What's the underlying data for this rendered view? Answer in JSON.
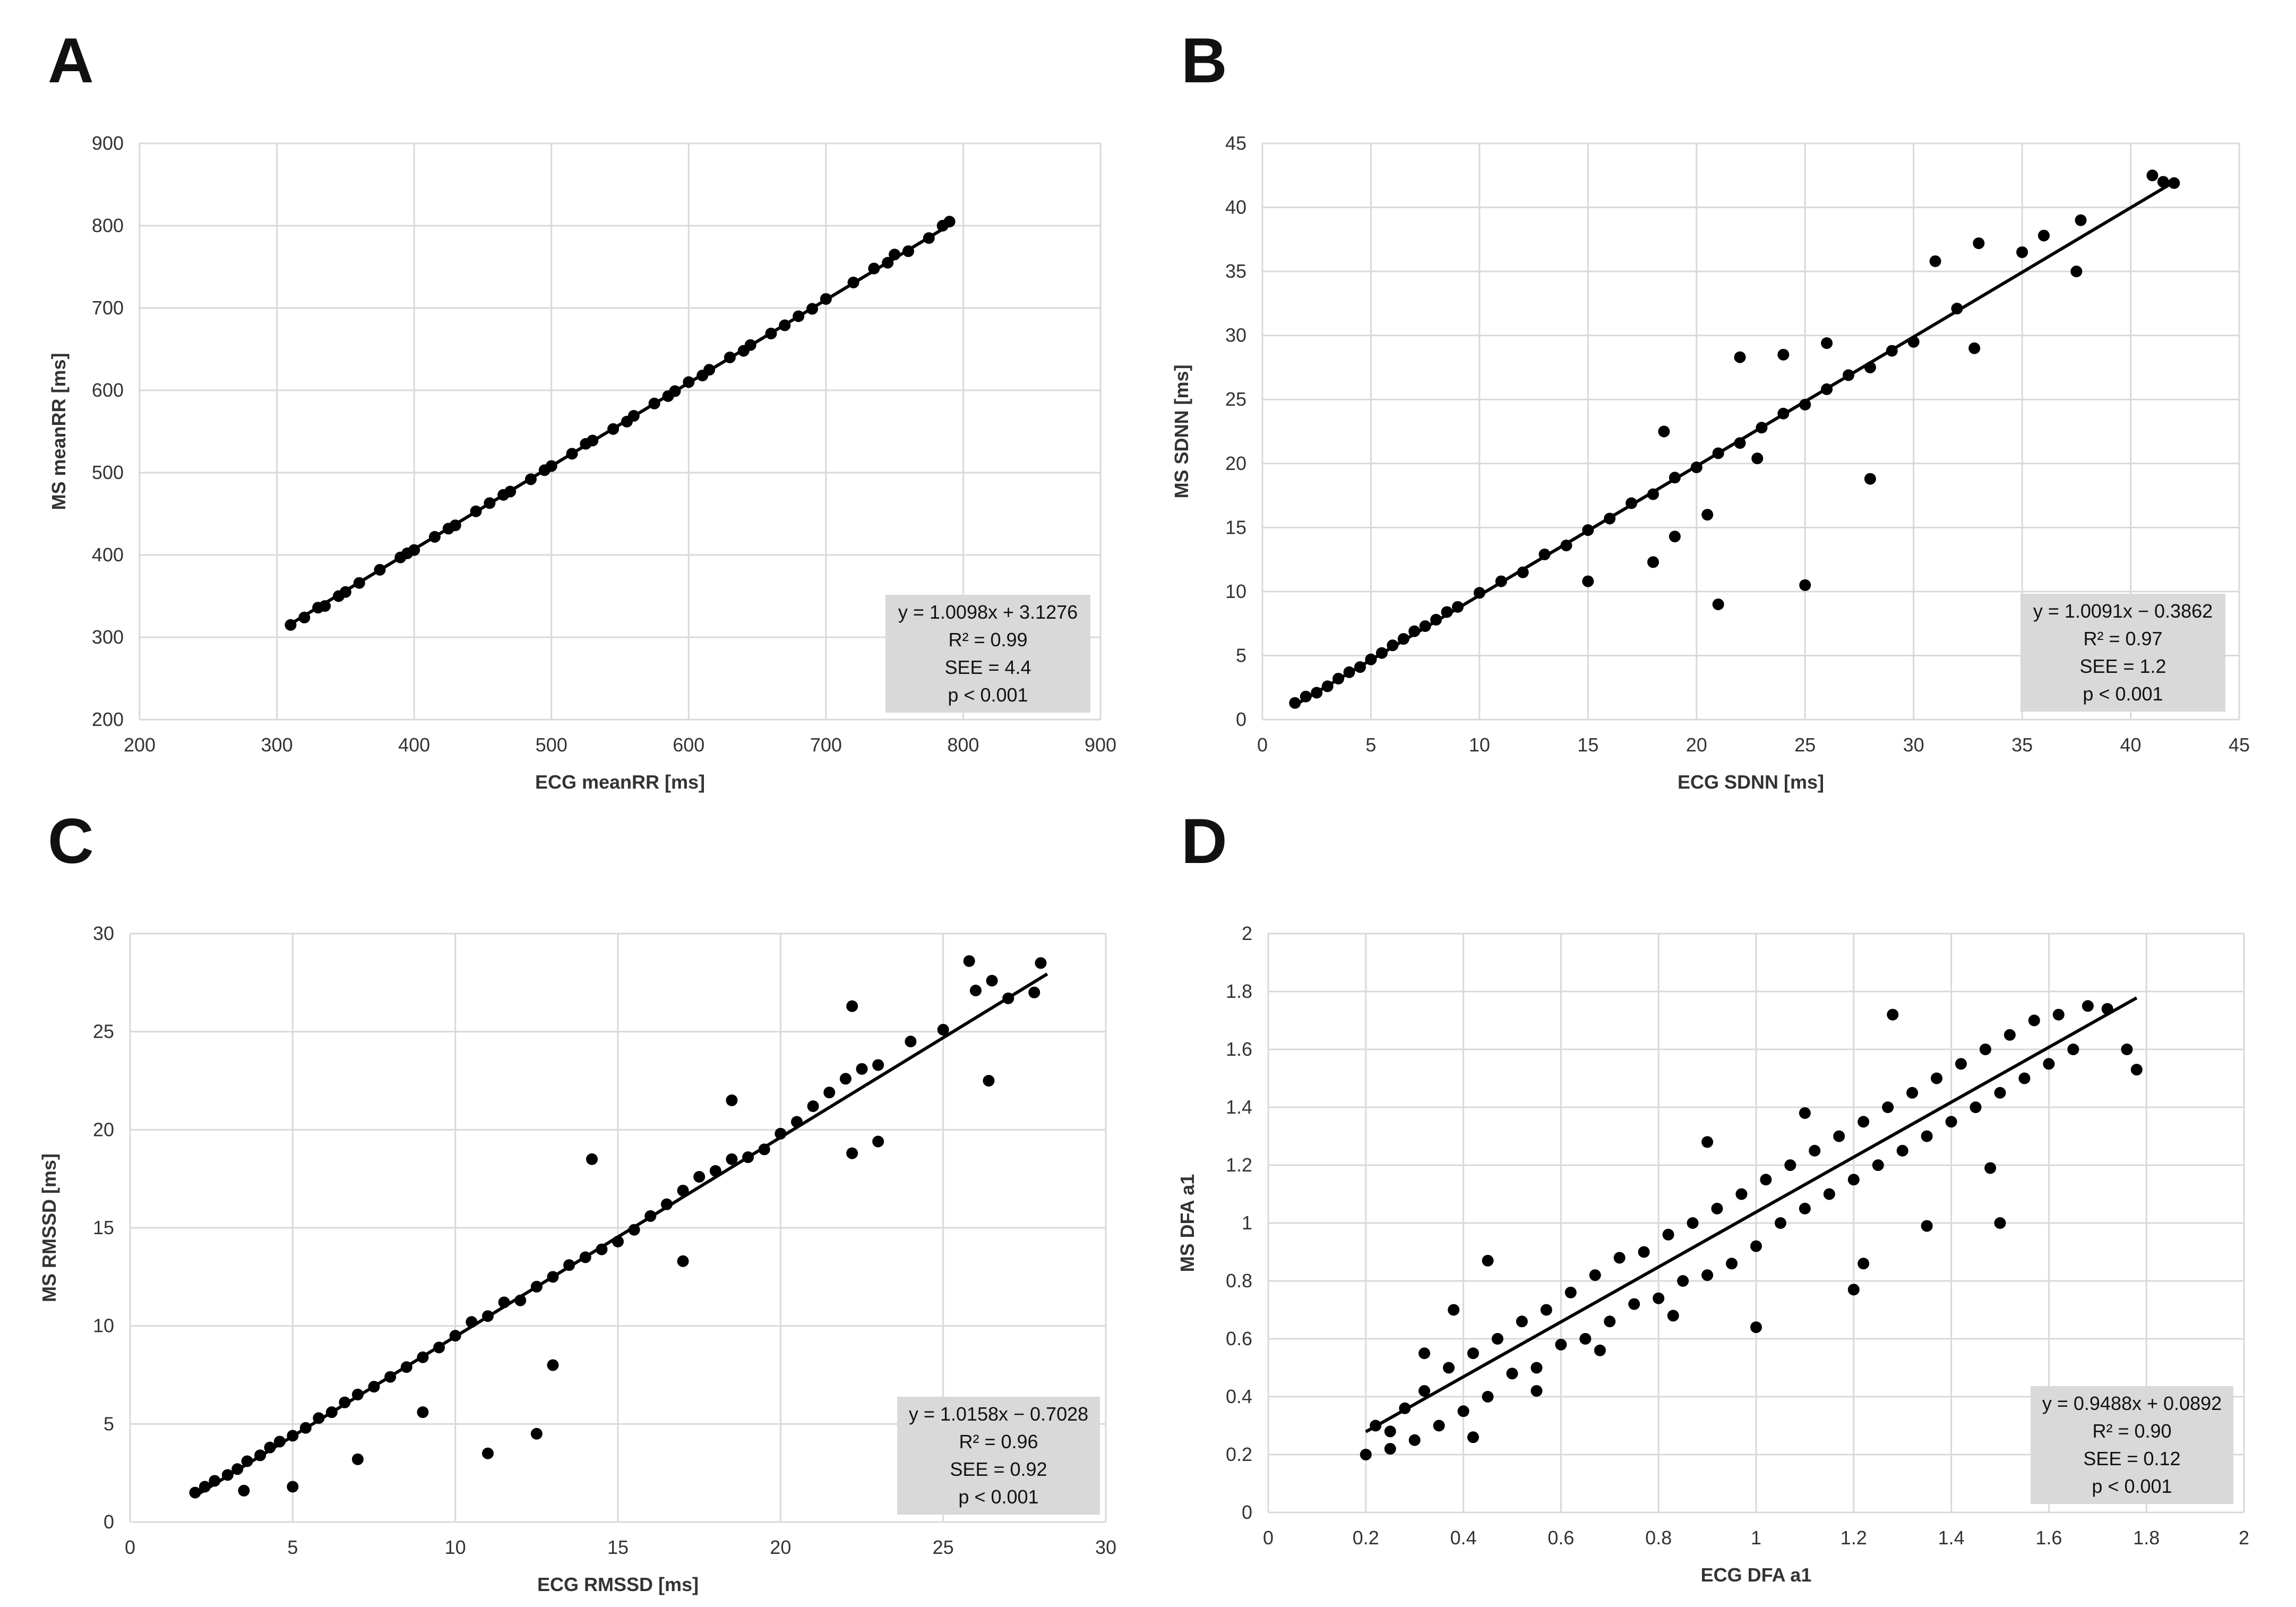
{
  "chart_data": [
    {
      "panel": "A",
      "type": "scatter",
      "xlabel": "ECG meanRR [ms]",
      "ylabel": "MS meanRR [ms]",
      "xlim": [
        200,
        900
      ],
      "ylim": [
        200,
        900
      ],
      "xticks": [
        200,
        300,
        400,
        500,
        600,
        700,
        800,
        900
      ],
      "yticks": [
        200,
        300,
        400,
        500,
        600,
        700,
        800,
        900
      ],
      "grid": true,
      "legend_position": "bottom-right",
      "regression": {
        "slope": 1.0098,
        "intercept": 3.1276,
        "x_range": [
          310,
          790
        ]
      },
      "stats": [
        "y = 1.0098x + 3.1276",
        "R² = 0.99",
        "SEE = 4.4",
        "p < 0.001"
      ],
      "points": [
        [
          310,
          315
        ],
        [
          320,
          324
        ],
        [
          330,
          336
        ],
        [
          345,
          350
        ],
        [
          360,
          366
        ],
        [
          375,
          382
        ],
        [
          390,
          397
        ],
        [
          400,
          406
        ],
        [
          415,
          422
        ],
        [
          430,
          436
        ],
        [
          445,
          453
        ],
        [
          455,
          463
        ],
        [
          470,
          477
        ],
        [
          485,
          492
        ],
        [
          500,
          508
        ],
        [
          515,
          523
        ],
        [
          530,
          539
        ],
        [
          545,
          553
        ],
        [
          560,
          569
        ],
        [
          575,
          584
        ],
        [
          590,
          599
        ],
        [
          600,
          610
        ],
        [
          615,
          625
        ],
        [
          630,
          640
        ],
        [
          645,
          655
        ],
        [
          660,
          669
        ],
        [
          680,
          690
        ],
        [
          700,
          711
        ],
        [
          720,
          731
        ],
        [
          745,
          755
        ],
        [
          760,
          769
        ],
        [
          775,
          785
        ],
        [
          785,
          800
        ],
        [
          790,
          805
        ],
        [
          335,
          338
        ],
        [
          350,
          355
        ],
        [
          395,
          402
        ],
        [
          425,
          432
        ],
        [
          465,
          473
        ],
        [
          495,
          503
        ],
        [
          525,
          535
        ],
        [
          555,
          562
        ],
        [
          585,
          593
        ],
        [
          610,
          618
        ],
        [
          640,
          648
        ],
        [
          670,
          679
        ],
        [
          690,
          699
        ],
        [
          735,
          748
        ],
        [
          750,
          765
        ]
      ]
    },
    {
      "panel": "B",
      "type": "scatter",
      "xlabel": "ECG SDNN [ms]",
      "ylabel": "MS SDNN [ms]",
      "xlim": [
        0,
        45
      ],
      "ylim": [
        0,
        45
      ],
      "xticks": [
        0,
        5,
        10,
        15,
        20,
        25,
        30,
        35,
        40,
        45
      ],
      "yticks": [
        0,
        5,
        10,
        15,
        20,
        25,
        30,
        35,
        40,
        45
      ],
      "grid": true,
      "legend_position": "bottom-right",
      "regression": {
        "slope": 1.0091,
        "intercept": -0.3862,
        "x_range": [
          1.5,
          42
        ]
      },
      "stats": [
        "y = 1.0091x − 0.3862",
        "R² = 0.97",
        "SEE = 1.2",
        "p < 0.001"
      ],
      "points": [
        [
          1.5,
          1.3
        ],
        [
          2,
          1.8
        ],
        [
          2.5,
          2.1
        ],
        [
          3,
          2.6
        ],
        [
          3.5,
          3.2
        ],
        [
          4,
          3.7
        ],
        [
          4.5,
          4.1
        ],
        [
          5,
          4.7
        ],
        [
          5.5,
          5.2
        ],
        [
          6,
          5.8
        ],
        [
          6.5,
          6.3
        ],
        [
          7,
          6.9
        ],
        [
          7.5,
          7.3
        ],
        [
          8,
          7.8
        ],
        [
          8.5,
          8.4
        ],
        [
          9,
          8.8
        ],
        [
          10,
          9.9
        ],
        [
          11,
          10.8
        ],
        [
          12,
          11.5
        ],
        [
          13,
          12.9
        ],
        [
          14,
          13.6
        ],
        [
          15,
          14.8
        ],
        [
          16,
          15.7
        ],
        [
          17,
          16.9
        ],
        [
          18,
          17.6
        ],
        [
          19,
          18.9
        ],
        [
          20,
          19.7
        ],
        [
          21,
          20.8
        ],
        [
          22,
          21.6
        ],
        [
          23,
          22.8
        ],
        [
          24,
          23.9
        ],
        [
          25,
          24.6
        ],
        [
          26,
          25.8
        ],
        [
          27,
          26.9
        ],
        [
          28,
          27.5
        ],
        [
          29,
          28.8
        ],
        [
          30,
          29.5
        ],
        [
          32,
          32.1
        ],
        [
          33,
          37.2
        ],
        [
          35,
          36.5
        ],
        [
          36,
          37.8
        ],
        [
          37.7,
          39.0
        ],
        [
          37.5,
          35.0
        ],
        [
          41,
          42.5
        ],
        [
          41.5,
          42.0
        ],
        [
          42,
          41.9
        ],
        [
          21,
          9.0
        ],
        [
          25,
          10.5
        ],
        [
          28,
          18.8
        ],
        [
          18.5,
          22.5
        ],
        [
          20.5,
          16.0
        ],
        [
          18,
          12.3
        ],
        [
          15,
          10.8
        ],
        [
          22,
          28.3
        ],
        [
          24,
          28.5
        ],
        [
          26,
          29.4
        ],
        [
          31,
          35.8
        ],
        [
          32.8,
          29.0
        ],
        [
          19,
          14.3
        ],
        [
          22.8,
          20.4
        ]
      ]
    },
    {
      "panel": "C",
      "type": "scatter",
      "xlabel": "ECG RMSSD [ms]",
      "ylabel": "MS RMSSD [ms]",
      "xlim": [
        0,
        30
      ],
      "ylim": [
        0,
        30
      ],
      "xticks": [
        0,
        5,
        10,
        15,
        20,
        25,
        30
      ],
      "yticks": [
        0,
        5,
        10,
        15,
        20,
        25,
        30
      ],
      "grid": true,
      "legend_position": "bottom-right",
      "regression": {
        "slope": 1.0158,
        "intercept": -0.7028,
        "x_range": [
          2,
          28.2
        ]
      },
      "stats": [
        "y = 1.0158x − 0.7028",
        "R² = 0.96",
        "SEE = 0.92",
        "p < 0.001"
      ],
      "points": [
        [
          2,
          1.5
        ],
        [
          2.3,
          1.8
        ],
        [
          2.6,
          2.1
        ],
        [
          3,
          2.4
        ],
        [
          3.3,
          2.7
        ],
        [
          3.6,
          3.1
        ],
        [
          4,
          3.4
        ],
        [
          4.3,
          3.8
        ],
        [
          4.6,
          4.1
        ],
        [
          5,
          4.4
        ],
        [
          5.4,
          4.8
        ],
        [
          5.8,
          5.3
        ],
        [
          6.2,
          5.6
        ],
        [
          6.6,
          6.1
        ],
        [
          7,
          6.5
        ],
        [
          7.5,
          6.9
        ],
        [
          8,
          7.4
        ],
        [
          8.5,
          7.9
        ],
        [
          9,
          8.4
        ],
        [
          9.5,
          8.9
        ],
        [
          10,
          9.5
        ],
        [
          10.5,
          10.2
        ],
        [
          11,
          10.5
        ],
        [
          11.5,
          11.2
        ],
        [
          12,
          11.3
        ],
        [
          12.5,
          12.0
        ],
        [
          13,
          12.5
        ],
        [
          13.5,
          13.1
        ],
        [
          14,
          13.5
        ],
        [
          14.5,
          13.9
        ],
        [
          15,
          14.3
        ],
        [
          15.5,
          14.9
        ],
        [
          16,
          15.6
        ],
        [
          16.5,
          16.2
        ],
        [
          17,
          16.9
        ],
        [
          17.5,
          17.6
        ],
        [
          18,
          17.9
        ],
        [
          18.5,
          18.5
        ],
        [
          19,
          18.6
        ],
        [
          19.5,
          19.0
        ],
        [
          20,
          19.8
        ],
        [
          20.5,
          20.4
        ],
        [
          21,
          21.2
        ],
        [
          21.5,
          21.9
        ],
        [
          22,
          22.6
        ],
        [
          22.5,
          23.1
        ],
        [
          23,
          23.3
        ],
        [
          24,
          24.5
        ],
        [
          25,
          25.1
        ],
        [
          26,
          27.1
        ],
        [
          26.5,
          27.6
        ],
        [
          27,
          26.7
        ],
        [
          28,
          28.5
        ],
        [
          27.8,
          27.0
        ],
        [
          25.8,
          28.6
        ],
        [
          26.4,
          22.5
        ],
        [
          22.2,
          26.3
        ],
        [
          22.2,
          18.8
        ],
        [
          23,
          19.4
        ],
        [
          11,
          3.5
        ],
        [
          12.5,
          4.5
        ],
        [
          14.2,
          18.5
        ],
        [
          18.5,
          21.5
        ],
        [
          17,
          13.3
        ],
        [
          5,
          1.8
        ],
        [
          3.5,
          1.6
        ],
        [
          7,
          3.2
        ],
        [
          9,
          5.6
        ],
        [
          13,
          8.0
        ]
      ]
    },
    {
      "panel": "D",
      "type": "scatter",
      "xlabel": "ECG DFA a1",
      "ylabel": "MS DFA a1",
      "xlim": [
        0,
        2
      ],
      "ylim": [
        0,
        2
      ],
      "xticks": [
        0,
        0.2,
        0.4,
        0.6,
        0.8,
        1,
        1.2,
        1.4,
        1.6,
        1.8,
        2
      ],
      "yticks": [
        0,
        0.2,
        0.4,
        0.6,
        0.8,
        1,
        1.2,
        1.4,
        1.6,
        1.8,
        2
      ],
      "grid": true,
      "legend_position": "bottom-right",
      "regression": {
        "slope": 0.9488,
        "intercept": 0.0892,
        "x_range": [
          0.2,
          1.78
        ]
      },
      "stats": [
        "y = 0.9488x + 0.0892",
        "R² = 0.90",
        "SEE = 0.12",
        "p < 0.001"
      ],
      "points": [
        [
          0.2,
          0.2
        ],
        [
          0.22,
          0.3
        ],
        [
          0.25,
          0.28
        ],
        [
          0.28,
          0.36
        ],
        [
          0.3,
          0.25
        ],
        [
          0.32,
          0.42
        ],
        [
          0.35,
          0.3
        ],
        [
          0.37,
          0.5
        ],
        [
          0.4,
          0.35
        ],
        [
          0.42,
          0.55
        ],
        [
          0.45,
          0.4
        ],
        [
          0.47,
          0.6
        ],
        [
          0.5,
          0.48
        ],
        [
          0.52,
          0.66
        ],
        [
          0.55,
          0.5
        ],
        [
          0.57,
          0.7
        ],
        [
          0.6,
          0.58
        ],
        [
          0.62,
          0.76
        ],
        [
          0.65,
          0.6
        ],
        [
          0.67,
          0.82
        ],
        [
          0.7,
          0.66
        ],
        [
          0.72,
          0.88
        ],
        [
          0.75,
          0.72
        ],
        [
          0.77,
          0.9
        ],
        [
          0.8,
          0.74
        ],
        [
          0.82,
          0.96
        ],
        [
          0.85,
          0.8
        ],
        [
          0.87,
          1.0
        ],
        [
          0.9,
          0.82
        ],
        [
          0.92,
          1.05
        ],
        [
          0.95,
          0.86
        ],
        [
          0.97,
          1.1
        ],
        [
          1.0,
          0.92
        ],
        [
          1.02,
          1.15
        ],
        [
          1.05,
          1.0
        ],
        [
          1.07,
          1.2
        ],
        [
          1.1,
          1.05
        ],
        [
          1.12,
          1.25
        ],
        [
          1.15,
          1.1
        ],
        [
          1.17,
          1.3
        ],
        [
          1.2,
          1.15
        ],
        [
          1.22,
          1.35
        ],
        [
          1.25,
          1.2
        ],
        [
          1.27,
          1.4
        ],
        [
          1.3,
          1.25
        ],
        [
          1.32,
          1.45
        ],
        [
          1.35,
          1.3
        ],
        [
          1.37,
          1.5
        ],
        [
          1.4,
          1.35
        ],
        [
          1.42,
          1.55
        ],
        [
          1.45,
          1.4
        ],
        [
          1.47,
          1.6
        ],
        [
          1.5,
          1.45
        ],
        [
          1.52,
          1.65
        ],
        [
          1.55,
          1.5
        ],
        [
          1.57,
          1.7
        ],
        [
          1.6,
          1.55
        ],
        [
          1.62,
          1.72
        ],
        [
          1.65,
          1.6
        ],
        [
          1.68,
          1.75
        ],
        [
          1.72,
          1.74
        ],
        [
          1.76,
          1.6
        ],
        [
          1.78,
          1.53
        ],
        [
          1.48,
          1.19
        ],
        [
          1.35,
          0.99
        ],
        [
          1.22,
          0.86
        ],
        [
          1.2,
          0.77
        ],
        [
          1.0,
          0.64
        ],
        [
          0.38,
          0.7
        ],
        [
          0.32,
          0.55
        ],
        [
          0.45,
          0.87
        ],
        [
          0.9,
          1.28
        ],
        [
          1.1,
          1.38
        ],
        [
          1.28,
          1.72
        ],
        [
          1.5,
          1.0
        ],
        [
          0.25,
          0.22
        ],
        [
          0.42,
          0.26
        ],
        [
          0.55,
          0.42
        ],
        [
          0.68,
          0.56
        ],
        [
          0.83,
          0.68
        ]
      ]
    }
  ]
}
